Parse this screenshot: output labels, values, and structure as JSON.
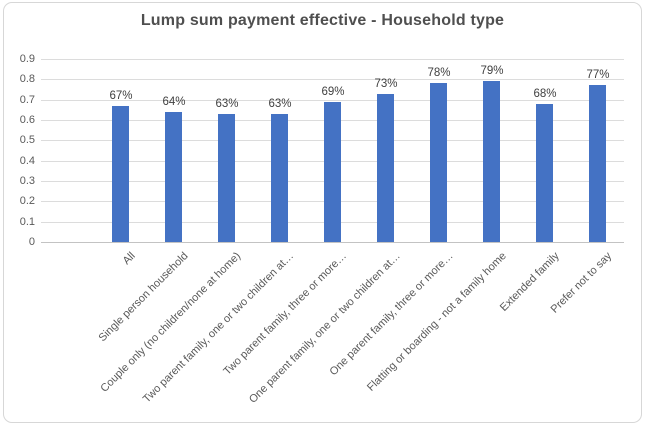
{
  "chart_data": {
    "type": "bar",
    "title": "Lump sum payment effective - Household type",
    "categories": [
      "All",
      "Single person household",
      "Couple only (no children/none at home)",
      "Two parent family, one or two children at…",
      "Two parent family, three or more…",
      "One parent family, one or two children at…",
      "One parent family, three or more…",
      "Flatting or boarding - not a family home",
      "Extended family",
      "Prefer not to say"
    ],
    "values": [
      0.67,
      0.64,
      0.63,
      0.63,
      0.69,
      0.73,
      0.78,
      0.79,
      0.68,
      0.77
    ],
    "data_labels": [
      "67%",
      "64%",
      "63%",
      "63%",
      "69%",
      "73%",
      "78%",
      "79%",
      "68%",
      "77%"
    ],
    "y_ticks": [
      "0",
      "0.1",
      "0.2",
      "0.3",
      "0.4",
      "0.5",
      "0.6",
      "0.7",
      "0.8",
      "0.9"
    ],
    "ylim": [
      0,
      0.9
    ],
    "xlabel": "",
    "ylabel": "",
    "grid": true,
    "legend_position": "none",
    "bar_color": "#4472C4",
    "gridline_color": "#DCDCDC",
    "axis_text_color": "#595959",
    "title_color": "#4F4F4F",
    "label_color": "#404040"
  }
}
